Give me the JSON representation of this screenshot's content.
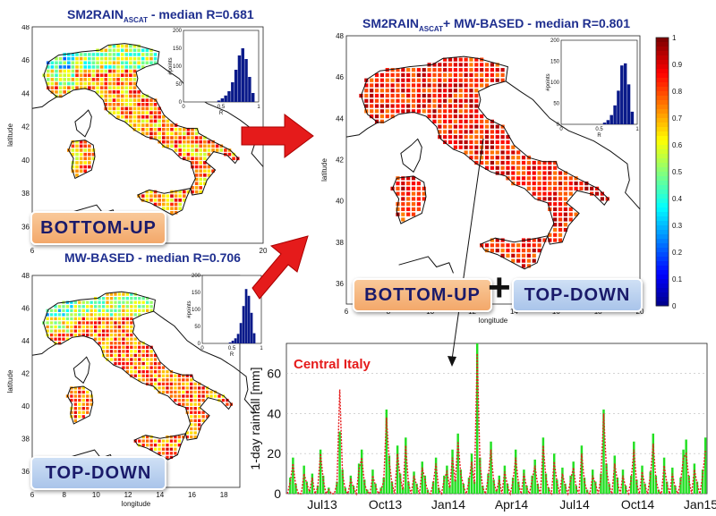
{
  "colors": {
    "title": "#1f2f8f",
    "arrow": "#e51b1b",
    "bars_green": "#22e022",
    "line_red": "#e51b1b",
    "hist": "#0a1a8a",
    "tag_bottom_up": "#f3a86a",
    "tag_top_down": "#a9c4ea"
  },
  "titles": {
    "panel_a_main": "SM2RAIN",
    "panel_a_sub": "ASCAT",
    "panel_a_rest": " - median R=0.681",
    "panel_b": "MW-BASED - median R=0.706",
    "panel_c_main": "SM2RAIN",
    "panel_c_sub": "ASCAT",
    "panel_c_rest": "+  MW-BASED - median R=0.801"
  },
  "tags": {
    "bottom_up": "BOTTOM-UP",
    "top_down": "TOP-DOWN",
    "plus": "+"
  },
  "chart_data": [
    {
      "type": "heatmap",
      "title": "SM2RAIN ASCAT - median R=0.681",
      "xlabel": "",
      "ylabel": "latitude",
      "xlim": [
        6,
        20
      ],
      "ylim": [
        35,
        48
      ],
      "xticks": [
        6,
        20
      ],
      "yticks": [
        36,
        38,
        40,
        42,
        44,
        46,
        48
      ],
      "colorscale": "jet",
      "median_R": 0.681,
      "inset": {
        "type": "bar",
        "xlabel": "R",
        "ylabel": "#points",
        "xticks": [
          0,
          0.5,
          1
        ],
        "yticks": [
          0,
          50,
          100,
          150,
          200
        ]
      }
    },
    {
      "type": "heatmap",
      "title": "MW-BASED - median R=0.706",
      "xlabel": "longitude",
      "ylabel": "latitude",
      "xlim": [
        6,
        19
      ],
      "ylim": [
        35,
        48
      ],
      "xticks": [
        6,
        8,
        10,
        12,
        14,
        16,
        18
      ],
      "yticks": [
        36,
        38,
        40,
        42,
        44,
        46,
        48
      ],
      "colorscale": "jet",
      "median_R": 0.706,
      "inset": {
        "type": "bar",
        "xlabel": "R",
        "ylabel": "#points",
        "xticks": [
          0,
          0.5,
          1
        ],
        "yticks": [
          0,
          50,
          100,
          150,
          200
        ]
      }
    },
    {
      "type": "heatmap",
      "title": "SM2RAIN ASCAT + MW-BASED - median R=0.801",
      "xlabel": "longitude",
      "ylabel": "latitude",
      "xlim": [
        6,
        20
      ],
      "ylim": [
        35,
        48
      ],
      "xticks": [
        6,
        8,
        10,
        12,
        14,
        16,
        18,
        20
      ],
      "yticks": [
        36,
        38,
        40,
        42,
        44,
        46,
        48
      ],
      "colorbar": {
        "ticks": [
          0,
          0.1,
          0.2,
          0.3,
          0.4,
          0.5,
          0.6,
          0.7,
          0.8,
          0.9,
          1
        ],
        "tick_labels": [
          "0",
          "0.1",
          "0.2",
          "0.3",
          "0.4",
          "0.5",
          "0.6",
          "0.7",
          "0.8",
          "0.9",
          "1"
        ]
      },
      "median_R": 0.801,
      "inset": {
        "type": "bar",
        "xlabel": "R",
        "ylabel": "#points",
        "xticks": [
          0,
          0.5,
          1
        ],
        "yticks": [
          0,
          50,
          100,
          150,
          200
        ]
      }
    },
    {
      "type": "bar",
      "title": "Central Italy",
      "ylabel": "1-day rainfall [mm]",
      "ylim": [
        0,
        75
      ],
      "yticks": [
        0,
        20,
        40,
        60
      ],
      "xticklabels": [
        "Jul13",
        "Oct13",
        "Jan14",
        "Apr14",
        "Jul14",
        "Oct14",
        "Jan15"
      ],
      "x_start": "Apr13",
      "x_end": "Jan15",
      "series": [
        {
          "name": "",
          "values": [
            0,
            8,
            18,
            5,
            0,
            0,
            14,
            6,
            2,
            10,
            0,
            4,
            22,
            9,
            0,
            3,
            0,
            0,
            6,
            31,
            12,
            3,
            0,
            9,
            4,
            0,
            15,
            22,
            7,
            2,
            0,
            12,
            5,
            0,
            3,
            8,
            42,
            19,
            6,
            0,
            24,
            10,
            3,
            28,
            6,
            0,
            11,
            5,
            0,
            16,
            9,
            2,
            0,
            6,
            18,
            3,
            0,
            9,
            14,
            4,
            22,
            7,
            30,
            12,
            5,
            0,
            8,
            20,
            6,
            75,
            18,
            4,
            0,
            10,
            26,
            7,
            2,
            9,
            0,
            14,
            5,
            0,
            8,
            22,
            6,
            0,
            12,
            4,
            0,
            9,
            17,
            5,
            0,
            28,
            10,
            3,
            0,
            20,
            7,
            0,
            13,
            5,
            0,
            9,
            16,
            4,
            0,
            24,
            8,
            2,
            0,
            12,
            6,
            0,
            10,
            42,
            15,
            5,
            0,
            19,
            8,
            0,
            12,
            4,
            0,
            9,
            26,
            7,
            0,
            14,
            5,
            0,
            11,
            30,
            9,
            2,
            0,
            18,
            6,
            0,
            13,
            4,
            0,
            8,
            22,
            27,
            9,
            0,
            15,
            6,
            0,
            12,
            28
          ]
        },
        {
          "name": "",
          "values": [
            0,
            6,
            15,
            4,
            0,
            0,
            10,
            5,
            1,
            8,
            0,
            3,
            20,
            7,
            0,
            2,
            0,
            0,
            5,
            52,
            10,
            2,
            0,
            7,
            3,
            0,
            12,
            18,
            5,
            1,
            0,
            9,
            4,
            0,
            2,
            6,
            38,
            16,
            5,
            0,
            20,
            8,
            2,
            24,
            5,
            0,
            9,
            4,
            0,
            13,
            7,
            1,
            0,
            5,
            15,
            2,
            0,
            7,
            11,
            3,
            18,
            6,
            26,
            10,
            4,
            0,
            6,
            16,
            5,
            70,
            15,
            3,
            0,
            8,
            22,
            6,
            1,
            7,
            0,
            11,
            4,
            0,
            6,
            18,
            5,
            0,
            10,
            3,
            0,
            7,
            14,
            4,
            0,
            24,
            8,
            2,
            0,
            16,
            6,
            0,
            10,
            4,
            0,
            7,
            13,
            3,
            0,
            20,
            6,
            1,
            0,
            9,
            5,
            0,
            8,
            40,
            12,
            4,
            0,
            15,
            6,
            0,
            9,
            3,
            0,
            7,
            22,
            5,
            0,
            11,
            4,
            0,
            9,
            25,
            7,
            1,
            0,
            14,
            5,
            0,
            10,
            3,
            0,
            6,
            18,
            20,
            7,
            0,
            12,
            5,
            0,
            9,
            22
          ]
        }
      ]
    }
  ]
}
